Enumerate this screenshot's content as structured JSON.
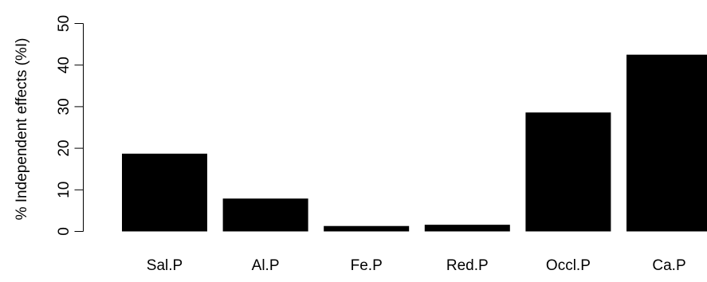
{
  "chart_data": {
    "type": "bar",
    "categories": [
      "Sal.P",
      "Al.P",
      "Fe.P",
      "Red.P",
      "Occl.P",
      "Ca.P"
    ],
    "values": [
      18.7,
      7.9,
      1.3,
      1.6,
      28.6,
      42.5
    ],
    "title": "",
    "xlabel": "",
    "ylabel": "% Independent effects (%I)",
    "ylim": [
      0,
      50
    ],
    "yticks": [
      0,
      10,
      20,
      30,
      40,
      50
    ],
    "grid": false,
    "legend": "none",
    "colors": {
      "bar": "#000000",
      "axis": "#000000",
      "background": "#ffffff"
    }
  }
}
